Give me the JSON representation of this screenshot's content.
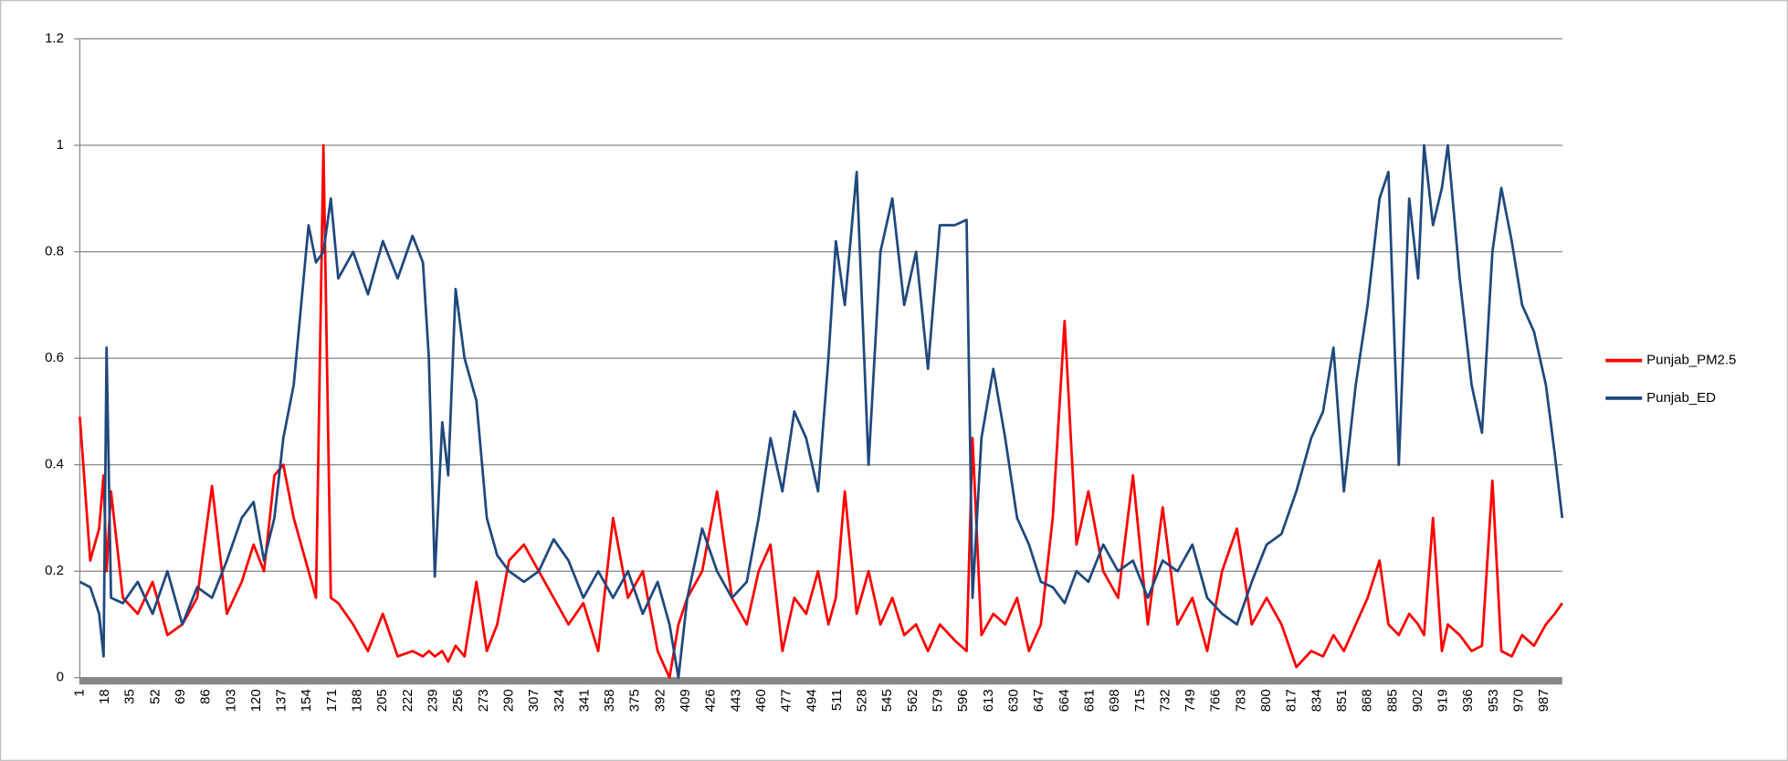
{
  "chart_data": {
    "type": "line",
    "x": [
      1,
      8,
      14,
      17,
      19,
      22,
      30,
      40,
      50,
      60,
      70,
      80,
      90,
      100,
      110,
      118,
      125,
      132,
      138,
      145,
      150,
      155,
      160,
      165,
      170,
      175,
      185,
      195,
      205,
      215,
      225,
      232,
      236,
      240,
      245,
      249,
      254,
      260,
      268,
      275,
      282,
      290,
      300,
      310,
      320,
      330,
      340,
      350,
      360,
      370,
      380,
      390,
      398,
      404,
      410,
      420,
      430,
      440,
      450,
      458,
      466,
      474,
      482,
      490,
      498,
      505,
      510,
      516,
      524,
      532,
      540,
      548,
      556,
      564,
      572,
      580,
      590,
      598,
      602,
      608,
      616,
      624,
      632,
      640,
      648,
      656,
      664,
      672,
      680,
      690,
      700,
      710,
      720,
      730,
      740,
      750,
      760,
      770,
      780,
      790,
      800,
      810,
      820,
      830,
      838,
      845,
      852,
      860,
      868,
      876,
      882,
      889,
      896,
      902,
      906,
      912,
      918,
      922,
      930,
      938,
      945,
      952,
      958,
      965,
      972,
      980,
      988,
      994,
      999
    ],
    "xlim": [
      1,
      999
    ],
    "xticks": [
      1,
      18,
      35,
      52,
      69,
      86,
      103,
      120,
      137,
      154,
      171,
      188,
      205,
      222,
      239,
      256,
      273,
      290,
      307,
      324,
      341,
      358,
      375,
      392,
      409,
      426,
      443,
      460,
      477,
      494,
      511,
      528,
      545,
      562,
      579,
      596,
      613,
      630,
      647,
      664,
      681,
      698,
      715,
      732,
      749,
      766,
      783,
      800,
      817,
      834,
      851,
      868,
      885,
      902,
      919,
      936,
      953,
      970,
      987
    ],
    "ylim": [
      0,
      1.2
    ],
    "yticks": [
      0,
      0.2,
      0.4,
      0.6,
      0.8,
      1,
      1.2
    ],
    "grid": true,
    "legend": "right",
    "series": [
      {
        "name": "Punjab_PM2.5",
        "color": "#ff0000",
        "values": [
          0.49,
          0.22,
          0.28,
          0.38,
          0.2,
          0.35,
          0.15,
          0.12,
          0.18,
          0.08,
          0.1,
          0.15,
          0.36,
          0.12,
          0.18,
          0.25,
          0.2,
          0.38,
          0.4,
          0.3,
          0.25,
          0.2,
          0.15,
          1,
          0.15,
          0.14,
          0.1,
          0.05,
          0.12,
          0.04,
          0.05,
          0.04,
          0.05,
          0.04,
          0.05,
          0.03,
          0.06,
          0.04,
          0.18,
          0.05,
          0.1,
          0.22,
          0.25,
          0.2,
          0.15,
          0.1,
          0.14,
          0.05,
          0.3,
          0.15,
          0.2,
          0.05,
          0,
          0.1,
          0.15,
          0.2,
          0.35,
          0.15,
          0.1,
          0.2,
          0.25,
          0.05,
          0.15,
          0.12,
          0.2,
          0.1,
          0.15,
          0.35,
          0.12,
          0.2,
          0.1,
          0.15,
          0.08,
          0.1,
          0.05,
          0.1,
          0.07,
          0.05,
          0.45,
          0.08,
          0.12,
          0.1,
          0.15,
          0.05,
          0.1,
          0.3,
          0.67,
          0.25,
          0.35,
          0.2,
          0.15,
          0.38,
          0.1,
          0.32,
          0.1,
          0.15,
          0.05,
          0.2,
          0.28,
          0.1,
          0.15,
          0.1,
          0.02,
          0.05,
          0.04,
          0.08,
          0.05,
          0.1,
          0.15,
          0.22,
          0.1,
          0.08,
          0.12,
          0.1,
          0.08,
          0.3,
          0.05,
          0.1,
          0.08,
          0.05,
          0.06,
          0.37,
          0.05,
          0.04,
          0.08,
          0.06,
          0.1,
          0.12,
          0.14
        ]
      },
      {
        "name": "Punjab_ED",
        "color": "#1f497d",
        "values": [
          0.18,
          0.17,
          0.12,
          0.04,
          0.62,
          0.15,
          0.14,
          0.18,
          0.12,
          0.2,
          0.1,
          0.17,
          0.15,
          0.22,
          0.3,
          0.33,
          0.22,
          0.3,
          0.45,
          0.55,
          0.7,
          0.85,
          0.78,
          0.8,
          0.9,
          0.75,
          0.8,
          0.72,
          0.82,
          0.75,
          0.83,
          0.78,
          0.6,
          0.19,
          0.48,
          0.38,
          0.73,
          0.6,
          0.52,
          0.3,
          0.23,
          0.2,
          0.18,
          0.2,
          0.26,
          0.22,
          0.15,
          0.2,
          0.15,
          0.2,
          0.12,
          0.18,
          0.1,
          0,
          0.15,
          0.28,
          0.2,
          0.15,
          0.18,
          0.3,
          0.45,
          0.35,
          0.5,
          0.45,
          0.35,
          0.6,
          0.82,
          0.7,
          0.95,
          0.4,
          0.8,
          0.9,
          0.7,
          0.8,
          0.58,
          0.85,
          0.85,
          0.86,
          0.15,
          0.45,
          0.58,
          0.45,
          0.3,
          0.25,
          0.18,
          0.17,
          0.14,
          0.2,
          0.18,
          0.25,
          0.2,
          0.22,
          0.15,
          0.22,
          0.2,
          0.25,
          0.15,
          0.12,
          0.1,
          0.18,
          0.25,
          0.27,
          0.35,
          0.45,
          0.5,
          0.62,
          0.35,
          0.55,
          0.7,
          0.9,
          0.95,
          0.4,
          0.9,
          0.75,
          1,
          0.85,
          0.92,
          1,
          0.75,
          0.55,
          0.46,
          0.8,
          0.92,
          0.82,
          0.7,
          0.65,
          0.55,
          0.42,
          0.3
        ]
      }
    ]
  }
}
